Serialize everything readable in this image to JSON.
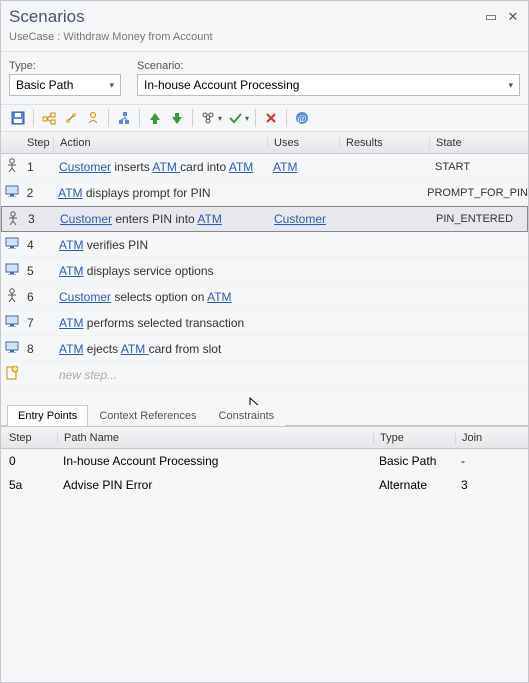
{
  "window": {
    "title": "Scenarios",
    "subtitle": "UseCase : Withdraw Money from Account"
  },
  "dropdowns": {
    "type_label": "Type:",
    "type_value": "Basic Path",
    "scenario_label": "Scenario:",
    "scenario_value": "In-house Account Processing"
  },
  "grid": {
    "headers": {
      "step": "Step",
      "action": "Action",
      "uses": "Uses",
      "results": "Results",
      "state": "State"
    },
    "new_step": "new step..."
  },
  "steps": [
    {
      "n": "1",
      "kind": "actor",
      "action_pre": "",
      "action_link1": "Customer",
      "action_mid": " inserts ",
      "action_link2": "ATM ",
      "action_post": "card into ",
      "action_link3": "ATM",
      "uses": "ATM",
      "state": "START",
      "selected": false
    },
    {
      "n": "2",
      "kind": "system",
      "action_pre": "",
      "action_link1": "ATM",
      "action_mid": " displays prompt for PIN",
      "action_link2": "",
      "action_post": "",
      "action_link3": "",
      "uses": "",
      "state": "PROMPT_FOR_PIN",
      "selected": false
    },
    {
      "n": "3",
      "kind": "actor",
      "action_pre": "",
      "action_link1": "Customer",
      "action_mid": " enters PIN into ",
      "action_link2": "ATM",
      "action_post": "",
      "action_link3": "",
      "uses": "Customer",
      "state": "PIN_ENTERED",
      "selected": true
    },
    {
      "n": "4",
      "kind": "system",
      "action_pre": "",
      "action_link1": "ATM",
      "action_mid": " verifies PIN",
      "action_link2": "",
      "action_post": "",
      "action_link3": "",
      "uses": "",
      "state": "",
      "selected": false
    },
    {
      "n": "5",
      "kind": "system",
      "action_pre": "",
      "action_link1": "ATM",
      "action_mid": " displays service options",
      "action_link2": "",
      "action_post": "",
      "action_link3": "",
      "uses": "",
      "state": "",
      "selected": false
    },
    {
      "n": "6",
      "kind": "actor",
      "action_pre": "",
      "action_link1": "Customer",
      "action_mid": " selects option on ",
      "action_link2": "ATM",
      "action_post": "",
      "action_link3": "",
      "uses": "",
      "state": "",
      "selected": false
    },
    {
      "n": "7",
      "kind": "system",
      "action_pre": "",
      "action_link1": "ATM",
      "action_mid": " performs selected transaction",
      "action_link2": "",
      "action_post": "",
      "action_link3": "",
      "uses": "",
      "state": "",
      "selected": false
    },
    {
      "n": "8",
      "kind": "system",
      "action_pre": "",
      "action_link1": "ATM",
      "action_mid": " ejects ",
      "action_link2": "ATM ",
      "action_post": "card from slot",
      "action_link3": "",
      "uses": "",
      "state": "",
      "selected": false
    }
  ],
  "tabs": {
    "t1": "Entry Points",
    "t2": "Context References",
    "t3": "Constraints"
  },
  "subgrid": {
    "headers": {
      "step": "Step",
      "name": "Path Name",
      "type": "Type",
      "join": "Join"
    },
    "rows": [
      {
        "step": "0",
        "name": "In-house Account Processing",
        "type": "Basic Path",
        "join": "-"
      },
      {
        "step": "5a",
        "name": "Advise PIN Error",
        "type": "Alternate",
        "join": "3"
      }
    ]
  },
  "colors": {
    "link": "#2a5db0",
    "title": "#4a5568",
    "bg": "#f5f6f7"
  }
}
